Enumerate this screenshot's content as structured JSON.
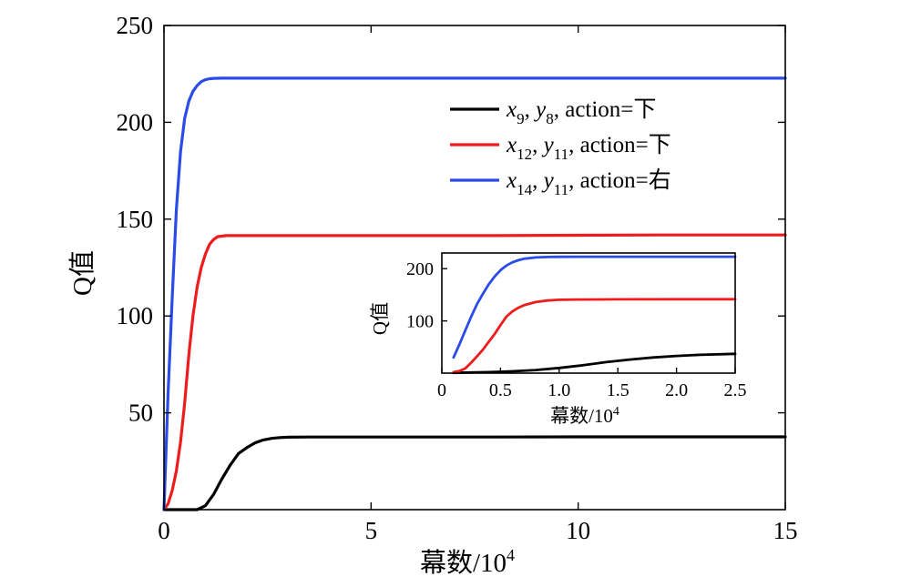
{
  "chart_data": [
    {
      "type": "line",
      "title": "",
      "xlabel": "幕数/10",
      "xlabel_sup": "4",
      "ylabel": "Q值",
      "xlim": [
        0,
        15
      ],
      "ylim": [
        0,
        250
      ],
      "x_ticks": [
        0,
        5,
        10,
        15
      ],
      "y_ticks": [
        50,
        100,
        150,
        200,
        250
      ],
      "x_tick_labels": [
        "0",
        "5",
        "10",
        "15"
      ],
      "y_tick_labels": [
        "50",
        "100",
        "150",
        "200",
        "250"
      ],
      "grid": false,
      "legend_position": "top-right",
      "series": [
        {
          "name": "x9, y8, action=下",
          "legend": {
            "v1": "x",
            "s1": "9",
            "v2": "y",
            "s2": "8",
            "rest": ", action=下"
          },
          "color": "#000000",
          "x": [
            0,
            0.5,
            0.8,
            1.0,
            1.2,
            1.4,
            1.6,
            1.8,
            2.0,
            2.2,
            2.4,
            2.6,
            2.8,
            3.0,
            3.5,
            4,
            6,
            8,
            10,
            12,
            15
          ],
          "y": [
            0,
            0,
            0,
            2,
            8,
            16,
            23,
            29,
            32,
            34.5,
            36,
            36.8,
            37.2,
            37.4,
            37.5,
            37.5,
            37.5,
            37.5,
            37.6,
            37.6,
            37.6
          ]
        },
        {
          "name": "x12, y11, action=下",
          "legend": {
            "v1": "x",
            "s1": "12",
            "v2": "y",
            "s2": "11",
            "rest": ", action=下"
          },
          "color": "#ee1c1c",
          "x": [
            0,
            0.1,
            0.2,
            0.3,
            0.4,
            0.5,
            0.6,
            0.7,
            0.8,
            0.9,
            1.0,
            1.1,
            1.2,
            1.3,
            1.5,
            2,
            3,
            5,
            8,
            10,
            12,
            15
          ],
          "y": [
            0,
            3,
            10,
            20,
            35,
            55,
            80,
            100,
            115,
            125,
            132,
            137,
            139.5,
            141,
            141.5,
            141.5,
            141.5,
            141.5,
            141.5,
            141.7,
            141.8,
            141.8
          ]
        },
        {
          "name": "x14, y11, action=右",
          "legend": {
            "v1": "x",
            "s1": "14",
            "v2": "y",
            "s2": "11",
            "rest": ", action=右"
          },
          "color": "#2a4be8",
          "x": [
            0,
            0.1,
            0.2,
            0.3,
            0.4,
            0.5,
            0.6,
            0.7,
            0.8,
            0.9,
            1.0,
            1.1,
            1.2,
            1.4,
            2,
            3,
            5,
            8,
            10,
            12,
            15
          ],
          "y": [
            0,
            60,
            110,
            155,
            185,
            202,
            211,
            216,
            219,
            221,
            222,
            222.5,
            222.7,
            222.8,
            222.8,
            222.8,
            222.8,
            222.8,
            222.8,
            222.8,
            222.8
          ]
        }
      ]
    },
    {
      "type": "line",
      "title": "",
      "xlabel": "幕数/10",
      "xlabel_sup": "4",
      "ylabel": "Q值",
      "xlim": [
        0,
        2.5
      ],
      "ylim": [
        0,
        230
      ],
      "x_ticks": [
        0,
        0.5,
        1.0,
        1.5,
        2.0,
        2.5
      ],
      "y_ticks": [
        100,
        200
      ],
      "x_tick_labels": [
        "0",
        "0.5",
        "1.0",
        "1.5",
        "2.0",
        "2.5"
      ],
      "y_tick_labels": [
        "100",
        "200"
      ],
      "grid": false,
      "series": [
        {
          "color": "#000000",
          "x": [
            0.1,
            0.2,
            0.4,
            0.6,
            0.8,
            1.0,
            1.2,
            1.4,
            1.6,
            1.8,
            2.0,
            2.2,
            2.5
          ],
          "y": [
            0.5,
            1,
            2,
            3.5,
            6,
            10,
            15,
            21,
            26,
            30,
            33,
            35,
            37
          ]
        },
        {
          "color": "#ee1c1c",
          "x": [
            0.1,
            0.15,
            0.2,
            0.25,
            0.3,
            0.35,
            0.4,
            0.45,
            0.5,
            0.55,
            0.6,
            0.65,
            0.7,
            0.8,
            0.9,
            1.0,
            1.2,
            1.5,
            2.0,
            2.5
          ],
          "y": [
            2,
            4,
            9,
            20,
            32,
            45,
            60,
            75,
            92,
            108,
            118,
            125,
            130,
            136,
            139,
            140.5,
            141,
            141.3,
            141.5,
            141.5
          ]
        },
        {
          "color": "#2a4be8",
          "x": [
            0.1,
            0.15,
            0.2,
            0.25,
            0.3,
            0.35,
            0.4,
            0.45,
            0.5,
            0.55,
            0.6,
            0.65,
            0.7,
            0.8,
            0.9,
            1.0,
            1.2,
            1.5,
            2.0,
            2.5
          ],
          "y": [
            30,
            55,
            82,
            108,
            132,
            152,
            170,
            185,
            197,
            206,
            212,
            216,
            219,
            221.5,
            222.3,
            222.6,
            222.8,
            222.8,
            222.8,
            222.8
          ]
        }
      ]
    }
  ]
}
